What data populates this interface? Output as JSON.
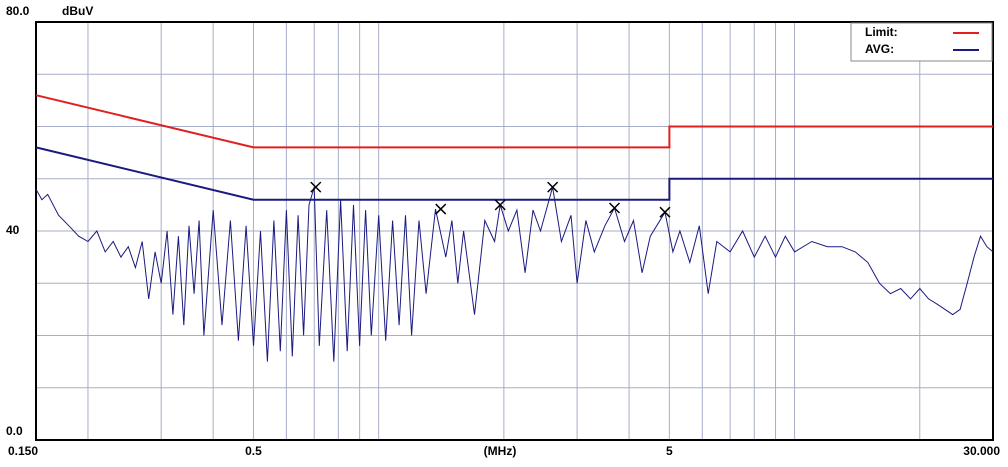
{
  "chart_data": {
    "type": "line",
    "y_unit": "dBuV",
    "xlabel": "(MHz)",
    "log_x": true,
    "xlim": [
      0.15,
      30
    ],
    "ylim": [
      0,
      80
    ],
    "xticks": [
      {
        "value": 0.15,
        "label": "0.150"
      },
      0.5,
      5,
      {
        "value": 30,
        "label": "30.000"
      }
    ],
    "xminor": [
      0.2,
      0.3,
      0.4,
      0.5,
      0.6,
      0.7,
      0.8,
      0.9,
      1,
      2,
      3,
      4,
      5,
      6,
      7,
      8,
      9,
      10,
      20
    ],
    "yticks": [
      {
        "value": 0,
        "label": "0.0"
      },
      40,
      {
        "value": 80,
        "label": "80.0"
      }
    ],
    "yminor": [
      10,
      20,
      30,
      40,
      50,
      60,
      70
    ],
    "grid": true,
    "legend": "upper right",
    "series": [
      {
        "name": "Limit:",
        "color": "#e02020",
        "x": [
          0.15,
          0.5,
          5,
          5,
          30
        ],
        "values": [
          66,
          56,
          56,
          60,
          60
        ]
      },
      {
        "name": "AVG:",
        "color": "#1a1a80",
        "x": [
          0.15,
          0.5,
          5,
          5,
          30
        ],
        "values": [
          56,
          46,
          46,
          50,
          50
        ]
      }
    ],
    "trace": {
      "color": "#1a1a80",
      "x": [
        0.15,
        0.155,
        0.16,
        0.17,
        0.18,
        0.19,
        0.2,
        0.21,
        0.22,
        0.23,
        0.24,
        0.25,
        0.26,
        0.27,
        0.28,
        0.29,
        0.3,
        0.31,
        0.32,
        0.33,
        0.34,
        0.35,
        0.36,
        0.37,
        0.38,
        0.4,
        0.42,
        0.44,
        0.46,
        0.48,
        0.5,
        0.52,
        0.54,
        0.56,
        0.58,
        0.6,
        0.62,
        0.64,
        0.66,
        0.68,
        0.7,
        0.72,
        0.75,
        0.78,
        0.81,
        0.84,
        0.87,
        0.9,
        0.93,
        0.96,
        1.0,
        1.04,
        1.08,
        1.12,
        1.16,
        1.2,
        1.25,
        1.3,
        1.37,
        1.45,
        1.5,
        1.55,
        1.6,
        1.7,
        1.8,
        1.9,
        1.96,
        2.05,
        2.15,
        2.25,
        2.35,
        2.45,
        2.62,
        2.75,
        2.9,
        3.0,
        3.15,
        3.3,
        3.5,
        3.69,
        3.9,
        4.1,
        4.3,
        4.5,
        4.88,
        5.1,
        5.3,
        5.6,
        5.9,
        6.2,
        6.5,
        7.0,
        7.5,
        8.0,
        8.5,
        9.0,
        9.5,
        10,
        11,
        12,
        13,
        14,
        15,
        16,
        17,
        18,
        19,
        20,
        21,
        22,
        23,
        24,
        25,
        26,
        27,
        28,
        29,
        30
      ],
      "values": [
        48,
        46,
        47,
        43,
        41,
        39,
        38,
        40,
        36,
        38,
        35,
        37,
        33,
        38,
        27,
        36,
        30,
        40,
        24,
        39,
        22,
        41,
        28,
        42,
        20,
        44,
        22,
        42,
        19,
        41,
        18,
        40,
        15,
        42,
        17,
        44,
        16,
        43,
        20,
        45,
        48.4,
        18,
        44,
        15,
        46,
        17,
        45,
        18,
        44,
        20,
        43,
        19,
        42,
        22,
        43,
        20,
        42,
        28,
        44.2,
        35,
        42,
        30,
        40,
        24,
        42,
        38,
        45,
        40,
        44,
        32,
        44,
        40,
        48.4,
        38,
        43,
        30,
        42,
        36,
        41,
        44.4,
        38,
        42,
        32,
        39,
        43.6,
        36,
        40,
        34,
        41,
        28,
        38,
        36,
        40,
        35,
        39,
        35,
        39,
        36,
        38,
        37,
        37,
        36,
        34,
        30,
        28,
        29,
        27,
        29,
        27,
        26,
        25,
        24,
        25,
        30,
        35,
        39,
        37,
        36
      ]
    },
    "markers": {
      "x": [
        0.706,
        1.41,
        1.96,
        2.62,
        3.69,
        4.88
      ],
      "values": [
        48.4,
        44.2,
        45,
        48.4,
        44.4,
        43.6
      ]
    }
  }
}
